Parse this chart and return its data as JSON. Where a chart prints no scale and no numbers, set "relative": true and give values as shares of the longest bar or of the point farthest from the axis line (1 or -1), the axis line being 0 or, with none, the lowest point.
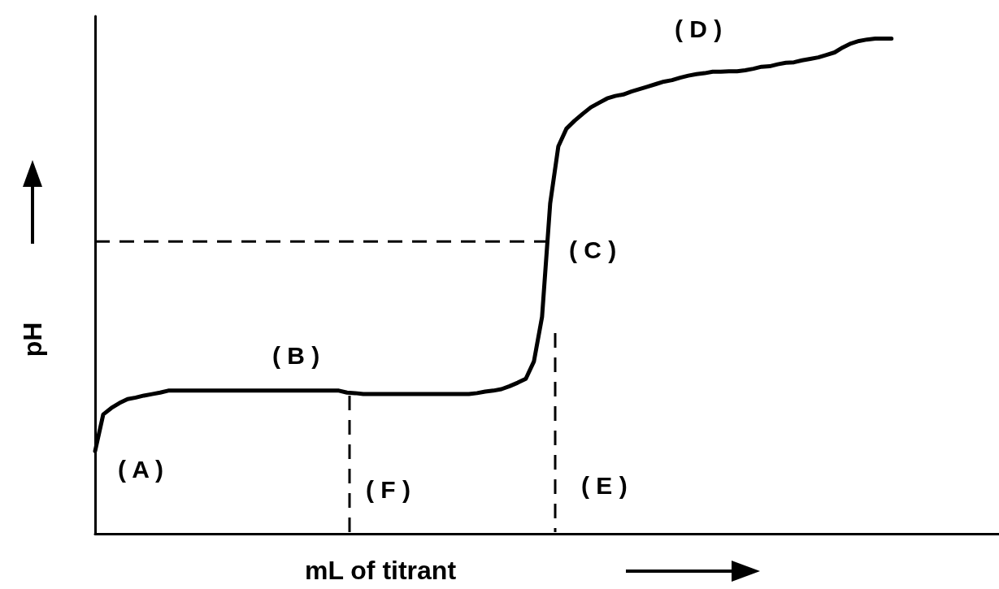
{
  "chart_data": {
    "type": "line",
    "relative": true,
    "xlabel": "mL of titrant",
    "ylabel": "pH",
    "color": "#000000",
    "marker": "none",
    "line_style": "solid",
    "grid": false,
    "categories": [
      null,
      null,
      null,
      null,
      null,
      null,
      null,
      null,
      null,
      null,
      null,
      null,
      null,
      null,
      null,
      null,
      null,
      null,
      null,
      null,
      null,
      null,
      null,
      null,
      null,
      null,
      null,
      null,
      null,
      null,
      null,
      null,
      null,
      null,
      null,
      null,
      null,
      null,
      null,
      null,
      null,
      null,
      null,
      null,
      null,
      null,
      null,
      null,
      null,
      null,
      null,
      null,
      null,
      null,
      null,
      null,
      null,
      null,
      null,
      null,
      null,
      null,
      null,
      null,
      null,
      null,
      null,
      null,
      null,
      null,
      null,
      null,
      null,
      null,
      null,
      null,
      null,
      null,
      null,
      null,
      null,
      null,
      null,
      null,
      null,
      null,
      null,
      null,
      null,
      null,
      null,
      null,
      null,
      null,
      null,
      null,
      null,
      null,
      null
    ],
    "values": [
      0.167,
      0.241,
      0.254,
      0.264,
      0.272,
      0.275,
      0.279,
      0.282,
      0.285,
      0.289,
      0.289,
      0.289,
      0.289,
      0.289,
      0.289,
      0.289,
      0.289,
      0.289,
      0.289,
      0.289,
      0.289,
      0.289,
      0.289,
      0.289,
      0.289,
      0.289,
      0.289,
      0.289,
      0.289,
      0.289,
      0.289,
      0.285,
      0.284,
      0.282,
      0.282,
      0.282,
      0.282,
      0.282,
      0.282,
      0.282,
      0.282,
      0.282,
      0.282,
      0.282,
      0.282,
      0.282,
      0.282,
      0.284,
      0.287,
      0.289,
      0.292,
      0.298,
      0.305,
      0.313,
      0.348,
      0.438,
      0.667,
      0.782,
      0.818,
      0.834,
      0.848,
      0.861,
      0.87,
      0.879,
      0.884,
      0.887,
      0.893,
      0.898,
      0.903,
      0.908,
      0.913,
      0.916,
      0.921,
      0.925,
      0.928,
      0.93,
      0.933,
      0.933,
      0.934,
      0.934,
      0.936,
      0.939,
      0.943,
      0.944,
      0.948,
      0.951,
      0.952,
      0.956,
      0.959,
      0.962,
      0.967,
      0.972,
      0.982,
      0.99,
      0.995,
      0.998,
      1,
      1,
      1
    ],
    "ref_lines": [
      {
        "axis": "y",
        "value": 0.59,
        "line_style": "dashed",
        "color": "#000000"
      }
    ],
    "annotations": [
      "( A )",
      "( B )",
      "( C )",
      "( D )",
      "( E )",
      "( F )"
    ]
  }
}
